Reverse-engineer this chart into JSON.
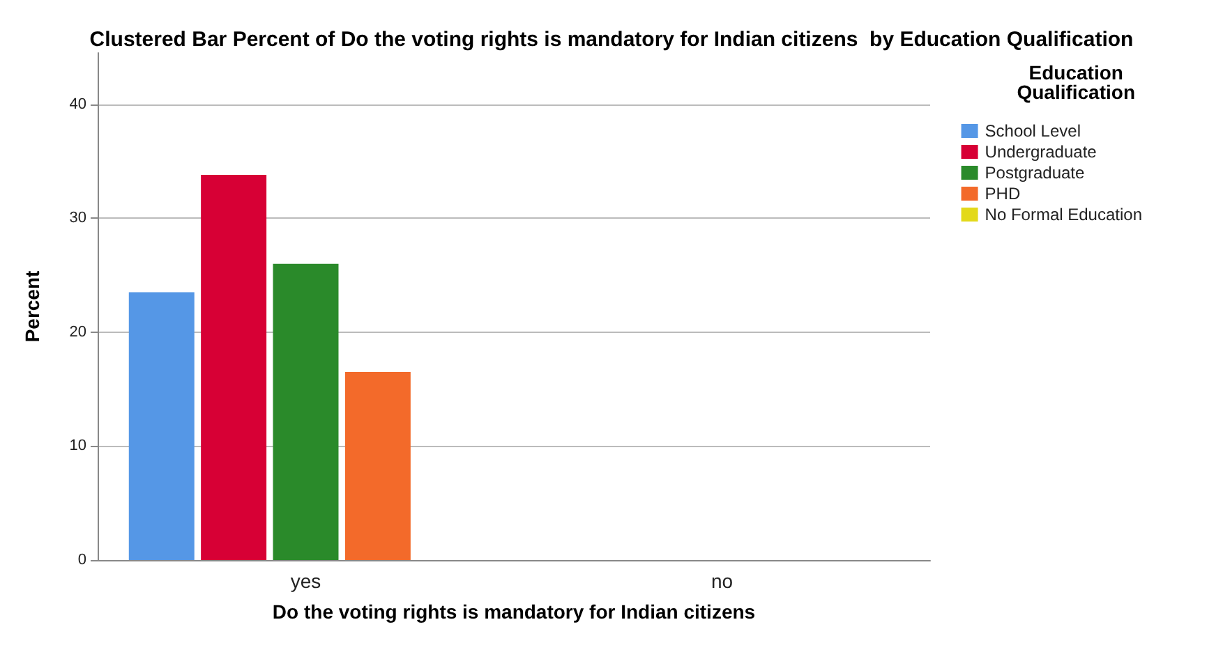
{
  "chart_data": {
    "type": "bar",
    "title": "Clustered Bar Percent of Do the voting rights is mandatory for Indian citizens  by Education Qualification",
    "xlabel": "Do the voting rights is mandatory for Indian citizens",
    "ylabel": "Percent",
    "legend_title": "Education\nQualification",
    "categories": [
      "yes",
      "no"
    ],
    "series": [
      {
        "name": "School Level",
        "color": "#5597e6",
        "values": [
          23.5,
          0
        ]
      },
      {
        "name": "Undergraduate",
        "color": "#d70035",
        "values": [
          33.8,
          0
        ]
      },
      {
        "name": "Postgraduate",
        "color": "#2a8a2a",
        "values": [
          26.0,
          0
        ]
      },
      {
        "name": "PHD",
        "color": "#f36a2a",
        "values": [
          16.5,
          0
        ]
      },
      {
        "name": "No Formal Education",
        "color": "#e3d91a",
        "values": [
          0,
          0
        ]
      }
    ],
    "ylim": [
      0,
      44.5
    ],
    "yticks": [
      0,
      10,
      20,
      30,
      40
    ],
    "grid": "y",
    "legend": "right"
  }
}
